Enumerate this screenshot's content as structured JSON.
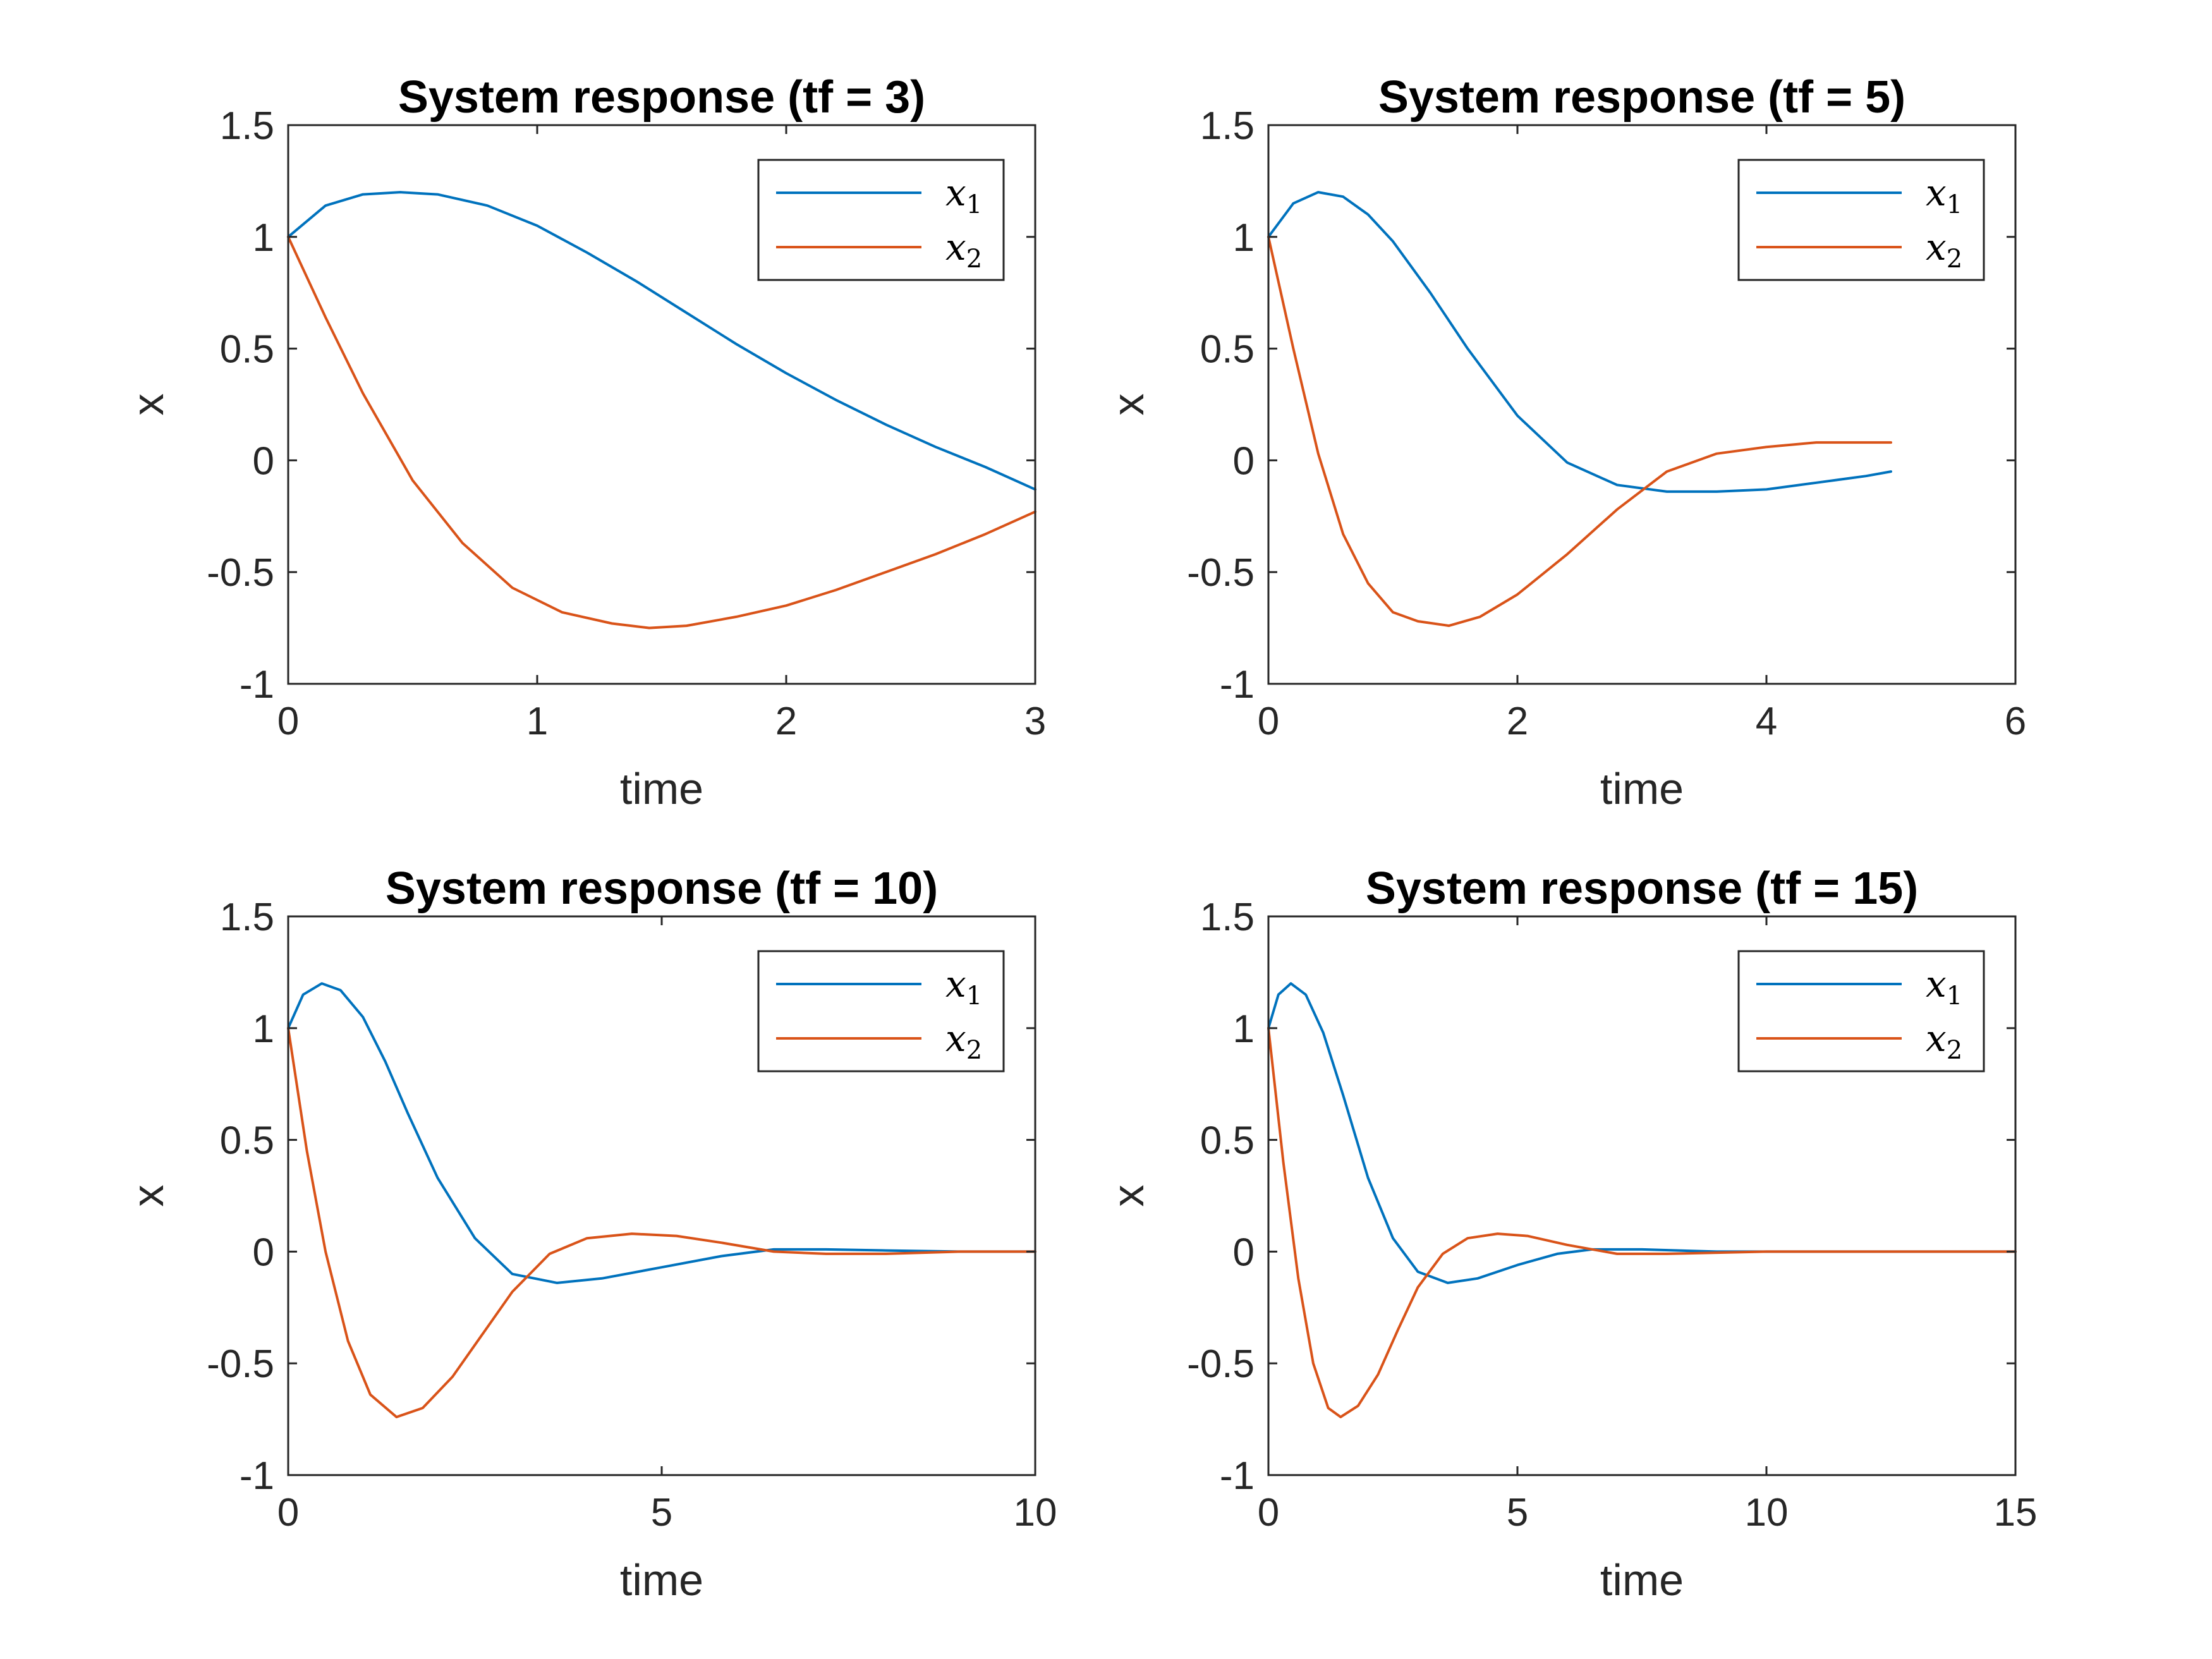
{
  "chart_data": [
    {
      "type": "line",
      "title": "System response (tf =  3)",
      "xlabel": "time",
      "ylabel": "x",
      "xlim": [
        0,
        3
      ],
      "ylim": [
        -1,
        1.5
      ],
      "xticks": [
        0,
        1,
        2,
        3
      ],
      "yticks": [
        -1,
        -0.5,
        0,
        0.5,
        1,
        1.5
      ],
      "legend_position": "top-right",
      "series": [
        {
          "name": "x1",
          "color": "#0072BD",
          "x": [
            0,
            0.15,
            0.3,
            0.45,
            0.6,
            0.8,
            1.0,
            1.2,
            1.4,
            1.6,
            1.8,
            2.0,
            2.2,
            2.4,
            2.6,
            2.8,
            3.0
          ],
          "y": [
            1.0,
            1.14,
            1.19,
            1.2,
            1.19,
            1.14,
            1.05,
            0.93,
            0.8,
            0.66,
            0.52,
            0.39,
            0.27,
            0.16,
            0.06,
            -0.03,
            -0.13
          ]
        },
        {
          "name": "x2",
          "color": "#D95319",
          "x": [
            0,
            0.15,
            0.3,
            0.5,
            0.7,
            0.9,
            1.1,
            1.3,
            1.45,
            1.6,
            1.8,
            2.0,
            2.2,
            2.4,
            2.6,
            2.8,
            3.0
          ],
          "y": [
            1.0,
            0.64,
            0.3,
            -0.09,
            -0.37,
            -0.57,
            -0.68,
            -0.73,
            -0.75,
            -0.74,
            -0.7,
            -0.65,
            -0.58,
            -0.5,
            -0.42,
            -0.33,
            -0.23
          ]
        }
      ]
    },
    {
      "type": "line",
      "title": "System response (tf =  5)",
      "xlabel": "time",
      "ylabel": "x",
      "xlim": [
        0,
        6
      ],
      "ylim": [
        -1,
        1.5
      ],
      "xticks": [
        0,
        2,
        4,
        6
      ],
      "yticks": [
        -1,
        -0.5,
        0,
        0.5,
        1,
        1.5
      ],
      "legend_position": "top-right",
      "series": [
        {
          "name": "x1",
          "color": "#0072BD",
          "x": [
            0,
            0.2,
            0.4,
            0.6,
            0.8,
            1.0,
            1.3,
            1.6,
            2.0,
            2.4,
            2.8,
            3.2,
            3.6,
            4.0,
            4.4,
            4.8,
            5.0
          ],
          "y": [
            1.0,
            1.15,
            1.2,
            1.18,
            1.1,
            0.98,
            0.75,
            0.5,
            0.2,
            -0.01,
            -0.11,
            -0.14,
            -0.14,
            -0.13,
            -0.1,
            -0.07,
            -0.05
          ]
        },
        {
          "name": "x2",
          "color": "#D95319",
          "x": [
            0,
            0.2,
            0.4,
            0.6,
            0.8,
            1.0,
            1.2,
            1.45,
            1.7,
            2.0,
            2.4,
            2.8,
            3.2,
            3.6,
            4.0,
            4.4,
            4.7,
            5.0
          ],
          "y": [
            1.0,
            0.5,
            0.03,
            -0.33,
            -0.55,
            -0.68,
            -0.72,
            -0.74,
            -0.7,
            -0.6,
            -0.42,
            -0.22,
            -0.05,
            0.03,
            0.06,
            0.08,
            0.08,
            0.08
          ]
        }
      ]
    },
    {
      "type": "line",
      "title": "System response (tf =  10)",
      "xlabel": "time",
      "ylabel": "x",
      "xlim": [
        0,
        10
      ],
      "ylim": [
        -1,
        1.5
      ],
      "xticks": [
        0,
        5,
        10
      ],
      "yticks": [
        -1,
        -0.5,
        0,
        0.5,
        1,
        1.5
      ],
      "legend_position": "top-right",
      "series": [
        {
          "name": "x1",
          "color": "#0072BD",
          "x": [
            0,
            0.2,
            0.45,
            0.7,
            1.0,
            1.3,
            1.6,
            2.0,
            2.5,
            3.0,
            3.6,
            4.2,
            5.0,
            5.8,
            6.5,
            7.2,
            8.0,
            9.0,
            10.0
          ],
          "y": [
            1.0,
            1.15,
            1.2,
            1.17,
            1.05,
            0.85,
            0.62,
            0.33,
            0.06,
            -0.1,
            -0.14,
            -0.12,
            -0.07,
            -0.02,
            0.01,
            0.01,
            0.005,
            0.0,
            0.0
          ]
        },
        {
          "name": "x2",
          "color": "#D95319",
          "x": [
            0,
            0.25,
            0.5,
            0.8,
            1.1,
            1.45,
            1.8,
            2.2,
            2.6,
            3.0,
            3.5,
            4.0,
            4.6,
            5.2,
            5.8,
            6.5,
            7.2,
            8.0,
            9.0,
            10.0
          ],
          "y": [
            1.0,
            0.45,
            0.0,
            -0.4,
            -0.64,
            -0.74,
            -0.7,
            -0.56,
            -0.37,
            -0.18,
            -0.01,
            0.06,
            0.08,
            0.07,
            0.04,
            0.0,
            -0.01,
            -0.01,
            0.0,
            0.0
          ]
        }
      ]
    },
    {
      "type": "line",
      "title": "System response (tf =  15)",
      "xlabel": "time",
      "ylabel": "x",
      "xlim": [
        0,
        15
      ],
      "ylim": [
        -1,
        1.5
      ],
      "xticks": [
        0,
        5,
        10,
        15
      ],
      "yticks": [
        -1,
        -0.5,
        0,
        0.5,
        1,
        1.5
      ],
      "legend_position": "top-right",
      "series": [
        {
          "name": "x1",
          "color": "#0072BD",
          "x": [
            0,
            0.2,
            0.45,
            0.75,
            1.1,
            1.5,
            2.0,
            2.5,
            3.0,
            3.6,
            4.2,
            5.0,
            5.8,
            6.5,
            7.5,
            9.0,
            11.0,
            13.0,
            15.0
          ],
          "y": [
            1.0,
            1.15,
            1.2,
            1.15,
            0.98,
            0.7,
            0.33,
            0.06,
            -0.09,
            -0.14,
            -0.12,
            -0.06,
            -0.01,
            0.01,
            0.01,
            0.0,
            0.0,
            0.0,
            0.0
          ]
        },
        {
          "name": "x2",
          "color": "#D95319",
          "x": [
            0,
            0.3,
            0.6,
            0.9,
            1.2,
            1.45,
            1.8,
            2.2,
            2.6,
            3.0,
            3.5,
            4.0,
            4.6,
            5.2,
            6.0,
            7.0,
            8.0,
            10.0,
            12.0,
            15.0
          ],
          "y": [
            1.0,
            0.4,
            -0.12,
            -0.5,
            -0.7,
            -0.74,
            -0.69,
            -0.55,
            -0.35,
            -0.16,
            -0.01,
            0.06,
            0.08,
            0.07,
            0.03,
            -0.01,
            -0.01,
            0.0,
            0.0,
            0.0
          ]
        }
      ]
    }
  ]
}
